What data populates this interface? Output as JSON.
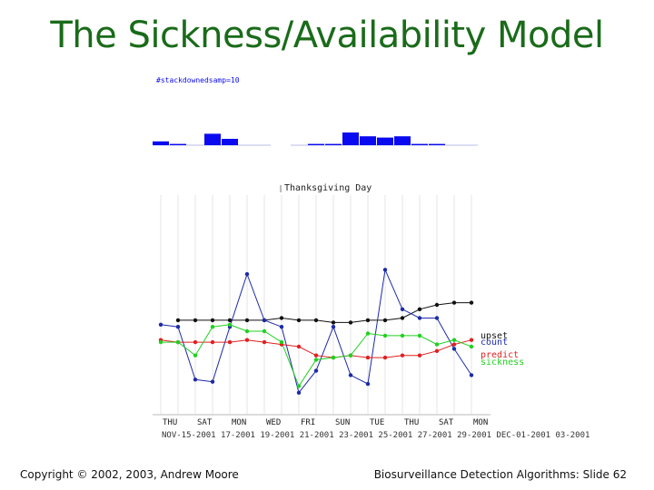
{
  "slide": {
    "title": "The Sickness/Availability Model",
    "footer_left": "Copyright © 2002, 2003, Andrew Moore",
    "footer_right": "Biosurveillance Detection Algorithms: Slide 62"
  },
  "chart_data": [
    {
      "type": "bar",
      "title": "",
      "legend_label": "#stackdownedsamp=10",
      "color": "#0a0af0",
      "values": [
        3,
        1,
        0,
        9,
        5,
        0,
        0,
        0,
        1,
        1,
        10,
        7,
        6,
        7,
        1,
        1,
        0
      ]
    },
    {
      "type": "line",
      "annotation": "Thanksgiving Day",
      "x_day_labels": [
        "THU",
        "SAT",
        "MON",
        "WED",
        "FRI",
        "SUN",
        "TUE",
        "THU",
        "SAT",
        "MON"
      ],
      "x_date_label": "NOV-15-2001 17-2001 19-2001 21-2001 23-2001 25-2001 27-2001 29-2001 DEC-01-2001 03-2001",
      "x": [
        0,
        1,
        2,
        3,
        4,
        5,
        6,
        7,
        8,
        9,
        10,
        11,
        12,
        13,
        14,
        15,
        16,
        17,
        18
      ],
      "ylim": [
        0,
        100
      ],
      "series": [
        {
          "name": "upset",
          "color": "#111111",
          "values": [
            null,
            43,
            43,
            43,
            43,
            43,
            43,
            44,
            43,
            43,
            42,
            42,
            43,
            43,
            44,
            48,
            50,
            51,
            51
          ]
        },
        {
          "name": "count",
          "color": "#1c2aa8",
          "values": [
            41,
            40,
            16,
            15,
            40,
            64,
            43,
            40,
            10,
            20,
            40,
            18,
            14,
            66,
            48,
            44,
            44,
            30,
            18
          ]
        },
        {
          "name": "predict",
          "color": "#e02020",
          "values": [
            34,
            33,
            33,
            33,
            33,
            34,
            33,
            32,
            31,
            27,
            26,
            27,
            26,
            26,
            27,
            27,
            29,
            32,
            34
          ]
        },
        {
          "name": "sickness",
          "color": "#20d020",
          "values": [
            33,
            33,
            27,
            40,
            41,
            38,
            38,
            33,
            13,
            25,
            26,
            27,
            37,
            36,
            36,
            36,
            32,
            34,
            31
          ]
        }
      ]
    }
  ]
}
